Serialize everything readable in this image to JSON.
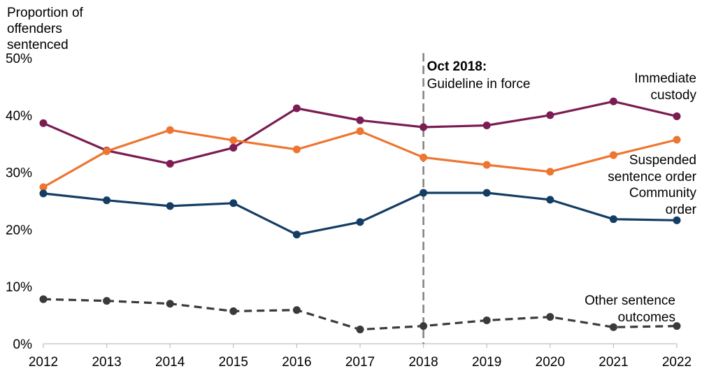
{
  "chart_data": {
    "type": "line",
    "title": "",
    "ylabel_lines": [
      "Proportion of",
      "offenders",
      "sentenced"
    ],
    "xlabel": "",
    "x": [
      "2012",
      "2013",
      "2014",
      "2015",
      "2016",
      "2017",
      "2018",
      "2019",
      "2020",
      "2021",
      "2022"
    ],
    "ylim": [
      0,
      50
    ],
    "yticks": [
      0,
      10,
      20,
      30,
      40,
      50
    ],
    "ytick_labels": [
      "0%",
      "10%",
      "20%",
      "30%",
      "40%",
      "50%"
    ],
    "grid": false,
    "series": [
      {
        "name": "Immediate custody",
        "label_lines": [
          "Immediate",
          "custody"
        ],
        "color": "#7b1d52",
        "dashed": false,
        "values": [
          38.6,
          33.8,
          31.5,
          34.3,
          41.2,
          39.1,
          37.9,
          38.2,
          40.0,
          42.4,
          39.8
        ]
      },
      {
        "name": "Suspended sentence order",
        "label_lines": [
          "Suspended",
          "sentence order"
        ],
        "color": "#ee7531",
        "dashed": false,
        "values": [
          27.4,
          33.7,
          37.4,
          35.6,
          34.0,
          37.2,
          32.6,
          31.3,
          30.1,
          33.0,
          35.7
        ]
      },
      {
        "name": "Community order",
        "label_lines": [
          "Community",
          "order"
        ],
        "color": "#143d63",
        "dashed": false,
        "values": [
          26.3,
          25.1,
          24.1,
          24.6,
          19.1,
          21.3,
          26.4,
          26.4,
          25.2,
          21.8,
          21.6
        ]
      },
      {
        "name": "Other sentence outcomes",
        "label_lines": [
          "Other sentence",
          "outcomes"
        ],
        "color": "#3a3a3a",
        "dashed": true,
        "values": [
          7.8,
          7.5,
          7.0,
          5.7,
          5.9,
          2.5,
          3.1,
          4.1,
          4.7,
          2.9,
          3.1
        ]
      }
    ],
    "annotation": {
      "x": "2018",
      "bold_text": "Oct 2018:",
      "text": "Guideline in force"
    }
  }
}
